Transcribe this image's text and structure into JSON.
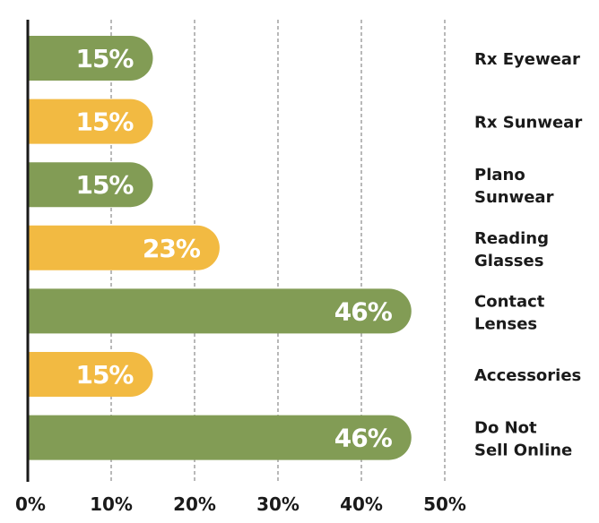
{
  "chart_data": {
    "type": "bar",
    "orientation": "horizontal",
    "categories": [
      [
        "Rx Eyewear"
      ],
      [
        "Rx Sunwear"
      ],
      [
        "Plano",
        "Sunwear"
      ],
      [
        "Reading",
        "Glasses"
      ],
      [
        "Contact",
        "Lenses"
      ],
      [
        "Accessories"
      ],
      [
        "Do Not",
        "Sell Online"
      ]
    ],
    "values": [
      15,
      15,
      15,
      23,
      46,
      15,
      46
    ],
    "value_labels": [
      "15%",
      "15%",
      "15%",
      "23%",
      "46%",
      "15%",
      "46%"
    ],
    "bar_colors": [
      "#829c55",
      "#f2ba42",
      "#829c55",
      "#f2ba42",
      "#829c55",
      "#f2ba42",
      "#829c55"
    ],
    "xlim": [
      0,
      50
    ],
    "x_ticks": [
      0,
      10,
      20,
      30,
      40,
      50
    ],
    "x_tick_labels": [
      "0%",
      "10%",
      "20%",
      "30%",
      "40%",
      "50%"
    ],
    "title": "",
    "xlabel": "",
    "ylabel": "",
    "grid": "vertical dashed",
    "legend": "none"
  }
}
